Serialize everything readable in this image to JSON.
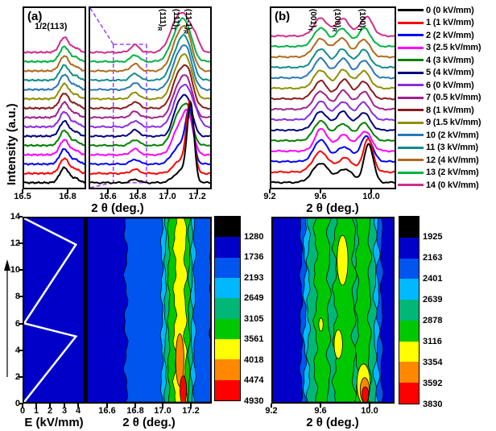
{
  "legend": {
    "entries": [
      {
        "label": "0 (0 kV/mm)",
        "color": "#000000"
      },
      {
        "label": "1 (1 kV/mm)",
        "color": "#FF0000"
      },
      {
        "label": "2 (2 kV/mm)",
        "color": "#0000FF"
      },
      {
        "label": "3 (2.5 kV/mm)",
        "color": "#FF00FF"
      },
      {
        "label": "4 (3 kV/mm)",
        "color": "#008000"
      },
      {
        "label": "5 (4 kV/mm)",
        "color": "#000080"
      },
      {
        "label": "6 (0 kV/mm)",
        "color": "#8A2BE2"
      },
      {
        "label": "7 (0.5 kV/mm)",
        "color": "#A0208C"
      },
      {
        "label": "8 (1 kV/mm)",
        "color": "#8B1A1A"
      },
      {
        "label": "9 (1.5 kV/mm)",
        "color": "#8F8F00"
      },
      {
        "label": "10 (2 kV/mm)",
        "color": "#2878B8"
      },
      {
        "label": "11 (3 kV/mm)",
        "color": "#128C8C"
      },
      {
        "label": "12 (4 kV/mm)",
        "color": "#B06A1E"
      },
      {
        "label": "13 (2 kV/mm)",
        "color": "#00B344"
      },
      {
        "label": "14 (0 kV/mm)",
        "color": "#D02E8C"
      }
    ]
  },
  "chart_data": [
    {
      "id": "panel_a",
      "type": "line",
      "tag": "(a)",
      "xlabel": "2 θ (deg.)",
      "ylabel": "Intensity (a.u.)",
      "superlattice_label": "1/2(113)",
      "zoom_axis": {
        "xlim": [
          16.5,
          16.92
        ],
        "ticks": [
          "16.5",
          "16.8"
        ]
      },
      "main_axis": {
        "xlim": [
          16.47,
          17.3
        ],
        "ticks": [
          "16.6",
          "16.8",
          "17.0",
          "17.2"
        ]
      },
      "ylim": [
        -0.15,
        5.25
      ],
      "peak_labels": [
        {
          "text": "(111)",
          "sub": "R",
          "x": 17.02
        },
        {
          "text": "(111)",
          "sub": "T",
          "x": 17.11
        },
        {
          "text": "(11-1)",
          "sub": "R",
          "x": 17.19
        }
      ],
      "annotation": {
        "color": "#9B30FF",
        "box_x": [
          16.63,
          16.86
        ],
        "box_top_y": 4.16,
        "box_bottom_y": 0.0
      },
      "zoom_peaks_common": [
        [
          16.78,
          0.45,
          0.032
        ],
        [
          16.86,
          0.12,
          0.025
        ]
      ],
      "series": [
        {
          "name": "0",
          "color": "#000000",
          "offset": 0.0,
          "peaks": [
            [
              16.78,
              0.1,
              0.03
            ],
            [
              17.1,
              0.35,
              0.05
            ],
            [
              17.165,
              2.25,
              0.024
            ]
          ]
        },
        {
          "name": "1",
          "color": "#FF0000",
          "offset": 0.28,
          "peaks": [
            [
              16.78,
              0.12,
              0.03
            ],
            [
              17.1,
              0.4,
              0.05
            ],
            [
              17.162,
              2.0,
              0.025
            ]
          ]
        },
        {
          "name": "2",
          "color": "#0000FF",
          "offset": 0.56,
          "peaks": [
            [
              16.78,
              0.14,
              0.03
            ],
            [
              17.09,
              0.55,
              0.05
            ],
            [
              17.158,
              1.5,
              0.027
            ]
          ]
        },
        {
          "name": "3",
          "color": "#FF00FF",
          "offset": 0.84,
          "peaks": [
            [
              16.78,
              0.17,
              0.03
            ],
            [
              17.085,
              0.8,
              0.045
            ],
            [
              17.15,
              1.0,
              0.034
            ]
          ]
        },
        {
          "name": "4",
          "color": "#008000",
          "offset": 1.12,
          "peaks": [
            [
              16.78,
              0.17,
              0.03
            ],
            [
              17.08,
              0.88,
              0.044
            ],
            [
              17.147,
              0.92,
              0.034
            ]
          ]
        },
        {
          "name": "5",
          "color": "#000080",
          "offset": 1.4,
          "peaks": [
            [
              16.78,
              0.18,
              0.03
            ],
            [
              17.085,
              0.95,
              0.04
            ],
            [
              17.15,
              0.85,
              0.034
            ]
          ]
        },
        {
          "name": "6",
          "color": "#8A2BE2",
          "offset": 1.68,
          "peaks": [
            [
              16.78,
              0.18,
              0.03
            ],
            [
              17.08,
              0.85,
              0.044
            ],
            [
              17.145,
              0.88,
              0.038
            ],
            [
              17.205,
              0.28,
              0.028
            ]
          ]
        },
        {
          "name": "7",
          "color": "#A0208C",
          "offset": 1.96,
          "peaks": [
            [
              16.78,
              0.18,
              0.03
            ],
            [
              17.08,
              0.88,
              0.044
            ],
            [
              17.148,
              0.9,
              0.038
            ]
          ]
        },
        {
          "name": "8",
          "color": "#8B1A1A",
          "offset": 2.24,
          "peaks": [
            [
              16.78,
              0.19,
              0.03
            ],
            [
              17.078,
              0.9,
              0.044
            ],
            [
              17.148,
              0.95,
              0.038
            ]
          ]
        },
        {
          "name": "9",
          "color": "#8F8F00",
          "offset": 2.52,
          "peaks": [
            [
              16.78,
              0.19,
              0.03
            ],
            [
              17.078,
              0.88,
              0.046
            ],
            [
              17.145,
              0.92,
              0.04
            ]
          ]
        },
        {
          "name": "10",
          "color": "#2878B8",
          "offset": 2.8,
          "peaks": [
            [
              16.78,
              0.2,
              0.03
            ],
            [
              17.075,
              0.85,
              0.046
            ],
            [
              17.142,
              0.95,
              0.04
            ]
          ]
        },
        {
          "name": "11",
          "color": "#128C8C",
          "offset": 3.08,
          "peaks": [
            [
              16.78,
              0.2,
              0.03
            ],
            [
              17.075,
              0.82,
              0.048
            ],
            [
              17.14,
              0.92,
              0.042
            ]
          ]
        },
        {
          "name": "12",
          "color": "#B06A1E",
          "offset": 3.36,
          "peaks": [
            [
              16.78,
              0.21,
              0.03
            ],
            [
              17.072,
              0.8,
              0.048
            ],
            [
              17.138,
              0.96,
              0.042
            ]
          ]
        },
        {
          "name": "13",
          "color": "#00B344",
          "offset": 3.64,
          "peaks": [
            [
              16.78,
              0.2,
              0.03
            ],
            [
              17.07,
              0.75,
              0.05
            ],
            [
              17.135,
              0.88,
              0.044
            ]
          ]
        },
        {
          "name": "14",
          "color": "#D02E8C",
          "offset": 3.92,
          "peaks": [
            [
              16.78,
              0.22,
              0.03
            ],
            [
              17.062,
              0.7,
              0.05
            ],
            [
              17.128,
              0.8,
              0.048
            ],
            [
              17.195,
              0.3,
              0.03
            ]
          ]
        }
      ]
    },
    {
      "id": "panel_b",
      "type": "line",
      "tag": "(b)",
      "xlabel": "2 θ (deg.)",
      "axis": {
        "xlim": [
          9.2,
          10.2
        ],
        "ticks": [
          "9.2",
          "9.6",
          "10.0"
        ]
      },
      "ylim": [
        -0.15,
        5.0
      ],
      "peak_labels": [
        {
          "text": "(001)",
          "sub": "T",
          "x": 9.6
        },
        {
          "text": "(100)",
          "sub": "R",
          "x": 9.79
        },
        {
          "text": "(100)",
          "sub": "T",
          "x": 9.99
        }
      ],
      "series": [
        {
          "name": "0",
          "color": "#000000",
          "offset": 0.0,
          "peaks": [
            [
              9.6,
              0.55,
              0.065
            ],
            [
              9.8,
              0.38,
              0.06
            ],
            [
              9.99,
              1.1,
              0.038
            ]
          ]
        },
        {
          "name": "1",
          "color": "#FF0000",
          "offset": 0.3,
          "peaks": [
            [
              9.6,
              0.58,
              0.062
            ],
            [
              9.8,
              0.4,
              0.06
            ],
            [
              9.985,
              0.95,
              0.04
            ]
          ]
        },
        {
          "name": "2",
          "color": "#0000FF",
          "offset": 0.6,
          "peaks": [
            [
              9.6,
              0.62,
              0.055
            ],
            [
              9.79,
              0.42,
              0.06
            ],
            [
              9.972,
              0.72,
              0.048
            ]
          ]
        },
        {
          "name": "3",
          "color": "#FF00FF",
          "offset": 0.9,
          "peaks": [
            [
              9.605,
              0.64,
              0.05
            ],
            [
              9.785,
              0.46,
              0.058
            ],
            [
              9.96,
              0.56,
              0.052
            ]
          ]
        },
        {
          "name": "4",
          "color": "#008000",
          "offset": 1.2,
          "peaks": [
            [
              9.6,
              0.56,
              0.055
            ],
            [
              9.78,
              0.48,
              0.058
            ],
            [
              9.955,
              0.5,
              0.052
            ]
          ]
        },
        {
          "name": "5",
          "color": "#000080",
          "offset": 1.5,
          "peaks": [
            [
              9.6,
              0.53,
              0.055
            ],
            [
              9.78,
              0.53,
              0.055
            ],
            [
              9.95,
              0.5,
              0.05
            ]
          ]
        },
        {
          "name": "6",
          "color": "#8A2BE2",
          "offset": 1.8,
          "peaks": [
            [
              9.6,
              0.52,
              0.055
            ],
            [
              9.782,
              0.51,
              0.055
            ],
            [
              9.95,
              0.49,
              0.05
            ]
          ]
        },
        {
          "name": "7",
          "color": "#A0208C",
          "offset": 2.1,
          "peaks": [
            [
              9.6,
              0.51,
              0.055
            ],
            [
              9.785,
              0.53,
              0.052
            ],
            [
              9.952,
              0.5,
              0.05
            ]
          ]
        },
        {
          "name": "8",
          "color": "#8B1A1A",
          "offset": 2.4,
          "peaks": [
            [
              9.6,
              0.51,
              0.055
            ],
            [
              9.79,
              0.55,
              0.05
            ],
            [
              9.952,
              0.49,
              0.05
            ]
          ]
        },
        {
          "name": "9",
          "color": "#8F8F00",
          "offset": 2.7,
          "peaks": [
            [
              9.6,
              0.52,
              0.055
            ],
            [
              9.785,
              0.53,
              0.052
            ],
            [
              9.95,
              0.49,
              0.05
            ]
          ]
        },
        {
          "name": "10",
          "color": "#2878B8",
          "offset": 3.0,
          "peaks": [
            [
              9.6,
              0.55,
              0.055
            ],
            [
              9.782,
              0.55,
              0.052
            ],
            [
              9.955,
              0.5,
              0.05
            ]
          ]
        },
        {
          "name": "11",
          "color": "#128C8C",
          "offset": 3.3,
          "peaks": [
            [
              9.6,
              0.53,
              0.055
            ],
            [
              9.778,
              0.52,
              0.052
            ],
            [
              9.95,
              0.5,
              0.05
            ]
          ]
        },
        {
          "name": "12",
          "color": "#B06A1E",
          "offset": 3.6,
          "peaks": [
            [
              9.6,
              0.51,
              0.058
            ],
            [
              9.772,
              0.53,
              0.054
            ],
            [
              9.95,
              0.5,
              0.05
            ]
          ]
        },
        {
          "name": "13",
          "color": "#00B344",
          "offset": 3.9,
          "peaks": [
            [
              9.6,
              0.53,
              0.055
            ],
            [
              9.776,
              0.51,
              0.054
            ],
            [
              9.955,
              0.52,
              0.05
            ]
          ]
        },
        {
          "name": "14",
          "color": "#D02E8C",
          "offset": 4.2,
          "peaks": [
            [
              9.6,
              0.51,
              0.055
            ],
            [
              9.78,
              0.49,
              0.055
            ],
            [
              9.972,
              0.55,
              0.05
            ]
          ]
        }
      ]
    },
    {
      "id": "efield",
      "type": "line",
      "xlabel": "E (kV/mm)",
      "xlim": [
        0,
        4.6
      ],
      "xticks": [
        "0",
        "1",
        "2",
        "3",
        "4"
      ],
      "ylim": [
        0,
        14
      ],
      "yticks": [
        "0",
        "2",
        "4",
        "6",
        "8",
        "10",
        "12",
        "14"
      ],
      "bg": "#0000C8",
      "line_color": "#FFFFFF",
      "profile": [
        [
          0,
          0
        ],
        [
          4,
          5
        ],
        [
          0,
          6
        ],
        [
          4,
          12
        ],
        [
          0,
          14
        ]
      ]
    },
    {
      "id": "contour_a",
      "type": "heatmap",
      "xlabel": "2 θ (deg.)",
      "xlim": [
        16.45,
        17.35
      ],
      "xticks": [
        "16.6",
        "16.8",
        "17.0",
        "17.2"
      ],
      "ylim": [
        0,
        14
      ],
      "levels": [
        1280,
        1736,
        2193,
        2649,
        3105,
        3561,
        4018,
        4474,
        4930
      ],
      "palette": [
        "#000000",
        "#0000C8",
        "#0055EE",
        "#00B8FF",
        "#00B778",
        "#00C800",
        "#FFFF00",
        "#FF8800",
        "#FF0000"
      ],
      "bg": "#0000C8",
      "bands": [
        {
          "color": "#0055EE",
          "x1": 16.73,
          "x2": 17.36,
          "wob": 0.012
        },
        {
          "color": "#00B8FF",
          "x1": 16.995,
          "x2": 17.235,
          "wob": 0.008
        },
        {
          "color": "#00B778",
          "x1": 17.02,
          "x2": 17.215,
          "wob": 0.007
        },
        {
          "color": "#00C800",
          "x1": 17.045,
          "x2": 17.195,
          "wob": 0.007
        },
        {
          "color": "#FFFF00",
          "x1": 17.09,
          "x2": 17.168,
          "wob": 0.01
        }
      ],
      "blobs": [
        {
          "color": "#FF8800",
          "cx": 17.127,
          "cy": 3.2,
          "rx": 0.03,
          "ry": 2.0
        },
        {
          "color": "#FF0000",
          "cx": 17.152,
          "cy": 0.9,
          "rx": 0.024,
          "ry": 1.1
        }
      ]
    },
    {
      "id": "contour_b",
      "type": "heatmap",
      "xlabel": "2 θ (deg.)",
      "xlim": [
        9.2,
        10.2
      ],
      "xticks": [
        "9.2",
        "9.6",
        "10.0"
      ],
      "ylim": [
        0,
        14
      ],
      "levels": [
        1925,
        2163,
        2401,
        2639,
        2878,
        3116,
        3354,
        3592,
        3830
      ],
      "palette": [
        "#000000",
        "#0000C8",
        "#0055EE",
        "#00B8FF",
        "#00B778",
        "#00C800",
        "#FFFF00",
        "#FF8800",
        "#FF0000"
      ],
      "bg": "#0000C8",
      "bands": [
        {
          "color": "#0055EE",
          "x1": 9.435,
          "x2": 10.105,
          "wob": 0.01
        },
        {
          "color": "#00B8FF",
          "x1": 9.465,
          "x2": 10.075,
          "wob": 0.012
        },
        {
          "color": "#00B778",
          "x1": 9.495,
          "x2": 10.05,
          "wob": 0.012
        },
        {
          "color": "#00C800",
          "x1": 9.555,
          "x2": 9.665,
          "wob": 0.014
        },
        {
          "color": "#00C800",
          "x1": 9.715,
          "x2": 9.875,
          "wob": 0.016
        },
        {
          "color": "#00C800",
          "x1": 9.9,
          "x2": 10.005,
          "wob": 0.012
        }
      ],
      "blobs": [
        {
          "color": "#FFFF00",
          "cx": 9.78,
          "cy": 10.8,
          "rx": 0.045,
          "ry": 1.9
        },
        {
          "color": "#FFFF00",
          "cx": 9.745,
          "cy": 4.4,
          "rx": 0.035,
          "ry": 1.1
        },
        {
          "color": "#FFFF00",
          "cx": 9.6,
          "cy": 5.9,
          "rx": 0.018,
          "ry": 0.5
        },
        {
          "color": "#FFFF00",
          "cx": 9.955,
          "cy": 1.4,
          "rx": 0.055,
          "ry": 1.5
        },
        {
          "color": "#FF8800",
          "cx": 9.965,
          "cy": 0.9,
          "rx": 0.038,
          "ry": 0.95
        },
        {
          "color": "#FF0000",
          "cx": 9.97,
          "cy": 0.55,
          "rx": 0.028,
          "ry": 0.6
        }
      ]
    }
  ]
}
